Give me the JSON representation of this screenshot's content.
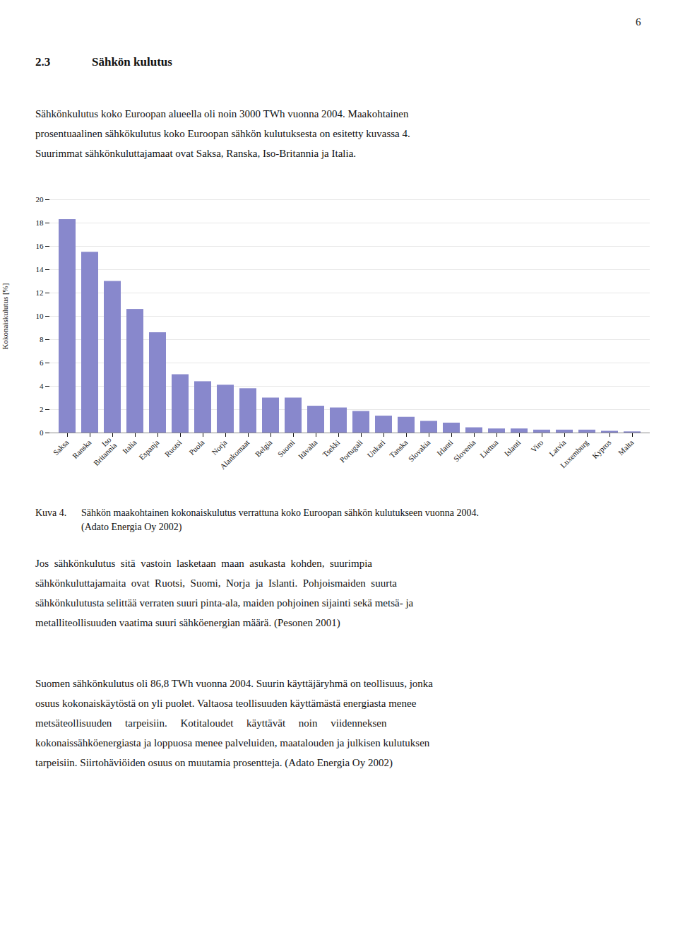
{
  "chart_data": {
    "type": "bar",
    "categories": [
      "Saksa",
      "Ranska",
      "Iso\nBritannia",
      "Italia",
      "Espanja",
      "Ruotsi",
      "Puola",
      "Norja",
      "Alankomaat",
      "Belgia",
      "Suomi",
      "Itävalta",
      "Tsekki",
      "Portugali",
      "Unkari",
      "Tanska",
      "Slovakia",
      "Irlanti",
      "Slovenia",
      "Liettua",
      "Islanti",
      "Viro",
      "Latvia",
      "Luxemburg",
      "Kypros",
      "Malta"
    ],
    "values": [
      18.3,
      15.5,
      13.0,
      10.6,
      8.6,
      5.0,
      4.4,
      4.1,
      3.8,
      3.0,
      3.0,
      2.3,
      2.15,
      1.85,
      1.45,
      1.35,
      1.0,
      0.85,
      0.45,
      0.35,
      0.35,
      0.25,
      0.25,
      0.25,
      0.15,
      0.1
    ],
    "color": "#8888CC",
    "ylabel": "Kokonaiskulutus [%]",
    "ylim": [
      0,
      20
    ],
    "yticks": [
      0,
      2,
      4,
      6,
      8,
      10,
      12,
      14,
      16,
      18,
      20
    ],
    "grid": true,
    "annotations": [
      "6",
      "2.3",
      "Sähkön kulutus",
      "Sähkönkulutus koko Euroopan alueella oli noin 3000 TWh vuonna 2004. Maakohtainen",
      "prosentuaalinen sähkökulutus koko Euroopan sähkön kulutuksesta on esitetty kuvassa 4.",
      "Suurimmat sähkönkuluttajamaat ovat Saksa, Ranska, Iso-Britannia ja Italia.",
      "Kuva 4.",
      "Sähkön maakohtainen kokonaiskulutus verrattuna koko Euroopan sähkön kulutukseen vuonna 2004.",
      "(Adato Energia Oy 2002)",
      "Jos  sähkönkulutus  sitä  vastoin  lasketaan  maan  asukasta  kohden,  suurimpia",
      "sähkönkuluttajamaita  ovat  Ruotsi,  Suomi,  Norja  ja  Islanti.  Pohjoismaiden  suurta",
      "sähkönkulutusta selittää verraten suuri pinta-ala, maiden pohjoinen sijainti sekä metsä- ja",
      "metalliteollisuuden vaatima suuri sähköenergian määrä. (Pesonen 2001)",
      "Suomen sähkönkulutus oli 86,8 TWh vuonna 2004. Suurin käyttäjäryhmä on teollisuus, jonka",
      "osuus kokonaiskäytöstä on yli puolet. Valtaosa teollisuuden käyttämästä energiasta menee",
      "metsäteollisuuden     tarpeisiin.     Kotitaloudet     käyttävät     noin     viidenneksen",
      "kokonaissähköenergiasta ja loppuosa menee palveluiden, maatalouden ja julkisen kulutuksen",
      "tarpeisiin. Siirtohäviöiden osuus on muutamia prosentteja. (Adato Energia Oy 2002)"
    ]
  }
}
